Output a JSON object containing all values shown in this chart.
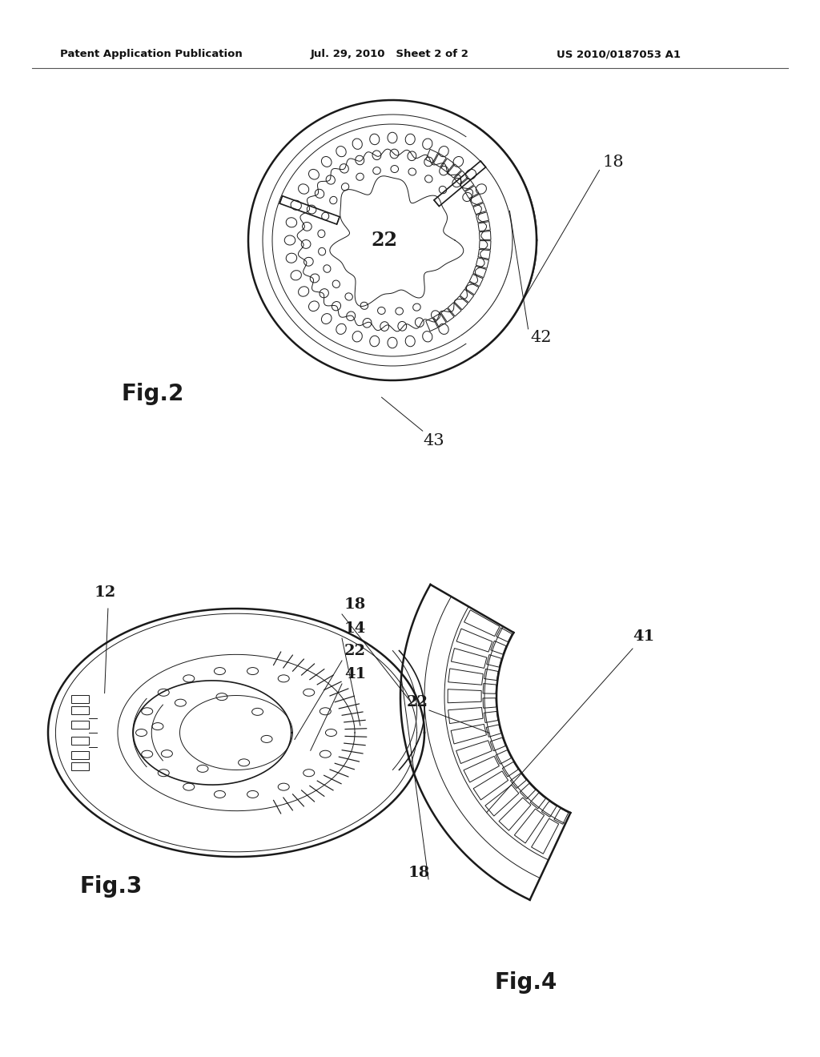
{
  "background_color": "#ffffff",
  "header_left": "Patent Application Publication",
  "header_mid": "Jul. 29, 2010   Sheet 2 of 2",
  "header_right": "US 2010/0187053 A1",
  "fig2_label": "Fig.2",
  "fig3_label": "Fig.3",
  "fig4_label": "Fig.4",
  "fig2_ref18": "18",
  "fig2_ref22": "22",
  "fig2_ref42": "42",
  "fig2_ref43": "43",
  "fig3_ref12": "12",
  "fig3_ref14": "14",
  "fig3_ref18": "18",
  "fig3_ref22": "22",
  "fig3_ref41": "41",
  "fig4_ref18": "18",
  "fig4_ref22": "22",
  "fig4_ref41": "41"
}
